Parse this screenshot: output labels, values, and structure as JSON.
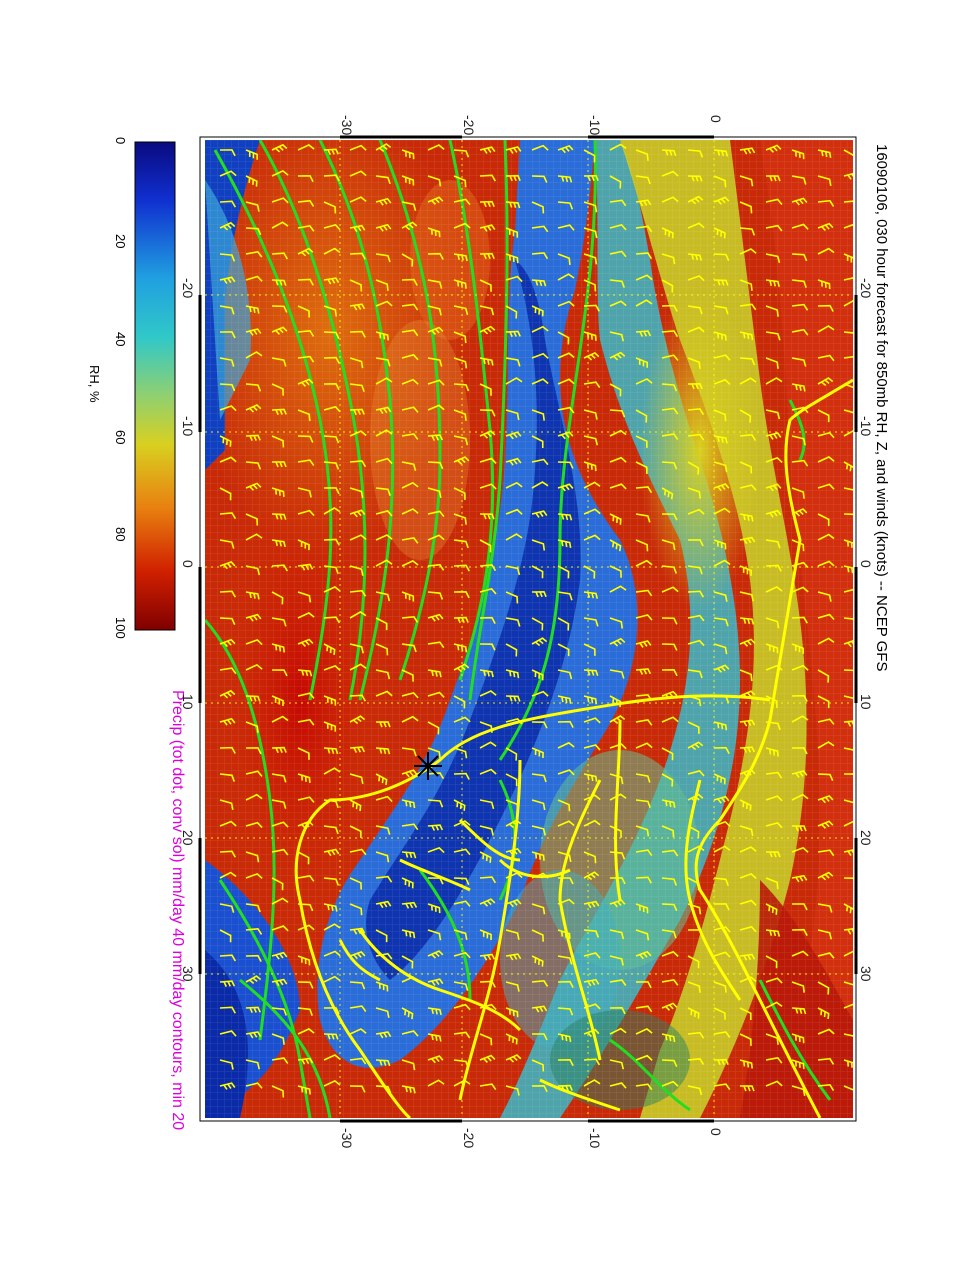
{
  "title": "16090106, 030 hour forecast for 850mb RH, Z, and winds (knots) -- NCEP GFS",
  "precip_caption": "Precip (tot dot, conv sol) mm/day 40 mm/day contours, min 20",
  "colors": {
    "precip_caption": "#dd00dd",
    "contour": "#22dd22",
    "barb": "#ffff00",
    "coast": "#ffff00"
  },
  "colorbar": {
    "title": "RH, %",
    "ticks": [
      "0",
      "20",
      "40",
      "60",
      "80",
      "100"
    ]
  },
  "axes": {
    "lat_ticks": [
      "-30",
      "-20",
      "-10",
      "0"
    ],
    "lon_ticks": [
      "-20",
      "-10",
      "0",
      "10",
      "20",
      "30"
    ]
  },
  "marker_icon": "asterisk-marker-icon"
}
